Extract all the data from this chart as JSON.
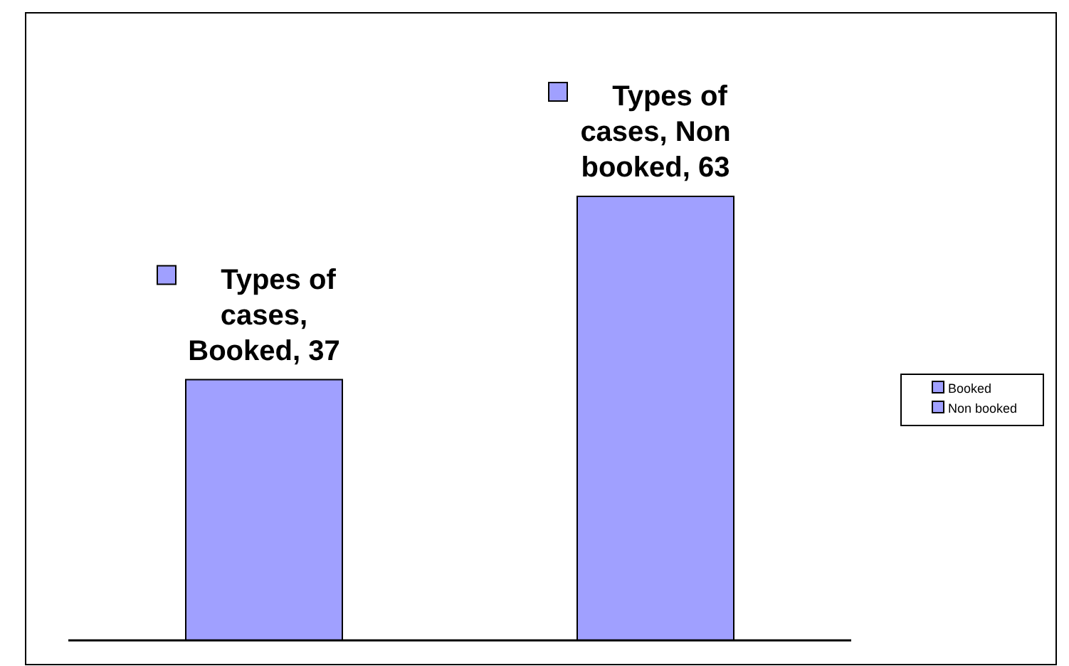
{
  "chart_data": {
    "type": "bar",
    "categories": [
      null,
      null
    ],
    "stacked": true,
    "series": [
      {
        "name": "Booked",
        "color": "#a0a0ff",
        "values": [
          37,
          null
        ],
        "value_labels": [
          "Types of cases, Booked, 37",
          null
        ]
      },
      {
        "name": "Non booked",
        "color": "#a0a0ff",
        "values": [
          null,
          63
        ],
        "value_labels": [
          null,
          "Types of cases, Non booked, 63"
        ]
      }
    ],
    "legend": "right",
    "grid": false
  }
}
